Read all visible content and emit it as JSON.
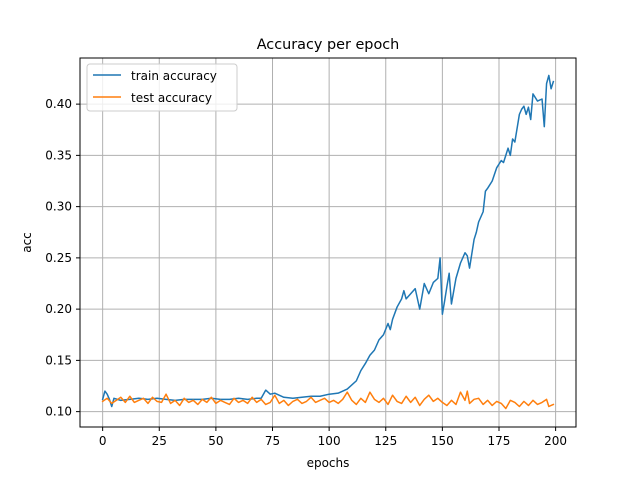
{
  "chart_data": {
    "type": "line",
    "title": "Accuracy per epoch",
    "xlabel": "epochs",
    "ylabel": "acc",
    "xlim": [
      -10,
      209
    ],
    "ylim": [
      0.085,
      0.445
    ],
    "xticks": [
      0,
      25,
      50,
      75,
      100,
      125,
      150,
      175,
      200
    ],
    "xtick_labels": [
      "0",
      "25",
      "50",
      "75",
      "100",
      "125",
      "150",
      "175",
      "200"
    ],
    "yticks": [
      0.1,
      0.15,
      0.2,
      0.25,
      0.3,
      0.35,
      0.4
    ],
    "ytick_labels": [
      "0.10",
      "0.15",
      "0.20",
      "0.25",
      "0.30",
      "0.35",
      "0.40"
    ],
    "grid": true,
    "legend_position": "top-left",
    "series": [
      {
        "name": "train accuracy",
        "color": "#1f77b4",
        "keypoints": [
          [
            0,
            0.112
          ],
          [
            1,
            0.12
          ],
          [
            2,
            0.117
          ],
          [
            3,
            0.112
          ],
          [
            4,
            0.105
          ],
          [
            5,
            0.113
          ],
          [
            8,
            0.111
          ],
          [
            12,
            0.112
          ],
          [
            16,
            0.113
          ],
          [
            20,
            0.112
          ],
          [
            24,
            0.113
          ],
          [
            28,
            0.112
          ],
          [
            32,
            0.111
          ],
          [
            36,
            0.112
          ],
          [
            40,
            0.112
          ],
          [
            44,
            0.112
          ],
          [
            48,
            0.113
          ],
          [
            52,
            0.112
          ],
          [
            56,
            0.112
          ],
          [
            60,
            0.113
          ],
          [
            64,
            0.112
          ],
          [
            68,
            0.113
          ],
          [
            70,
            0.113
          ],
          [
            72,
            0.121
          ],
          [
            74,
            0.117
          ],
          [
            76,
            0.118
          ],
          [
            80,
            0.114
          ],
          [
            84,
            0.113
          ],
          [
            88,
            0.114
          ],
          [
            92,
            0.115
          ],
          [
            96,
            0.115
          ],
          [
            100,
            0.117
          ],
          [
            104,
            0.118
          ],
          [
            108,
            0.122
          ],
          [
            112,
            0.13
          ],
          [
            114,
            0.14
          ],
          [
            116,
            0.147
          ],
          [
            118,
            0.155
          ],
          [
            120,
            0.16
          ],
          [
            122,
            0.17
          ],
          [
            124,
            0.175
          ],
          [
            126,
            0.186
          ],
          [
            127,
            0.18
          ],
          [
            128,
            0.19
          ],
          [
            130,
            0.202
          ],
          [
            132,
            0.21
          ],
          [
            133,
            0.218
          ],
          [
            134,
            0.21
          ],
          [
            136,
            0.215
          ],
          [
            138,
            0.22
          ],
          [
            140,
            0.2
          ],
          [
            142,
            0.225
          ],
          [
            144,
            0.215
          ],
          [
            146,
            0.226
          ],
          [
            148,
            0.23
          ],
          [
            149,
            0.25
          ],
          [
            150,
            0.195
          ],
          [
            151,
            0.208
          ],
          [
            152,
            0.222
          ],
          [
            153,
            0.235
          ],
          [
            154,
            0.205
          ],
          [
            156,
            0.23
          ],
          [
            158,
            0.245
          ],
          [
            159,
            0.25
          ],
          [
            160,
            0.255
          ],
          [
            161,
            0.252
          ],
          [
            162,
            0.24
          ],
          [
            164,
            0.268
          ],
          [
            165,
            0.275
          ],
          [
            166,
            0.285
          ],
          [
            168,
            0.295
          ],
          [
            169,
            0.315
          ],
          [
            170,
            0.318
          ],
          [
            172,
            0.325
          ],
          [
            174,
            0.338
          ],
          [
            176,
            0.345
          ],
          [
            177,
            0.343
          ],
          [
            178,
            0.35
          ],
          [
            179,
            0.357
          ],
          [
            180,
            0.35
          ],
          [
            181,
            0.366
          ],
          [
            182,
            0.363
          ],
          [
            184,
            0.39
          ],
          [
            185,
            0.395
          ],
          [
            186,
            0.398
          ],
          [
            187,
            0.39
          ],
          [
            188,
            0.397
          ],
          [
            189,
            0.385
          ],
          [
            190,
            0.41
          ],
          [
            192,
            0.403
          ],
          [
            194,
            0.405
          ],
          [
            195,
            0.378
          ],
          [
            196,
            0.42
          ],
          [
            197,
            0.428
          ],
          [
            198,
            0.415
          ],
          [
            199,
            0.422
          ]
        ]
      },
      {
        "name": "test accuracy",
        "color": "#ff7f0e",
        "keypoints": [
          [
            0,
            0.11
          ],
          [
            2,
            0.113
          ],
          [
            4,
            0.108
          ],
          [
            6,
            0.111
          ],
          [
            8,
            0.114
          ],
          [
            10,
            0.109
          ],
          [
            12,
            0.115
          ],
          [
            14,
            0.109
          ],
          [
            16,
            0.111
          ],
          [
            18,
            0.113
          ],
          [
            20,
            0.108
          ],
          [
            22,
            0.114
          ],
          [
            24,
            0.11
          ],
          [
            26,
            0.109
          ],
          [
            28,
            0.117
          ],
          [
            30,
            0.108
          ],
          [
            32,
            0.111
          ],
          [
            34,
            0.106
          ],
          [
            36,
            0.113
          ],
          [
            38,
            0.109
          ],
          [
            40,
            0.111
          ],
          [
            42,
            0.107
          ],
          [
            44,
            0.112
          ],
          [
            46,
            0.109
          ],
          [
            48,
            0.114
          ],
          [
            50,
            0.108
          ],
          [
            52,
            0.111
          ],
          [
            54,
            0.109
          ],
          [
            56,
            0.107
          ],
          [
            58,
            0.113
          ],
          [
            60,
            0.109
          ],
          [
            62,
            0.111
          ],
          [
            64,
            0.108
          ],
          [
            66,
            0.114
          ],
          [
            68,
            0.109
          ],
          [
            70,
            0.112
          ],
          [
            72,
            0.107
          ],
          [
            74,
            0.109
          ],
          [
            76,
            0.116
          ],
          [
            78,
            0.108
          ],
          [
            80,
            0.111
          ],
          [
            82,
            0.106
          ],
          [
            84,
            0.11
          ],
          [
            86,
            0.112
          ],
          [
            88,
            0.108
          ],
          [
            90,
            0.11
          ],
          [
            92,
            0.114
          ],
          [
            94,
            0.109
          ],
          [
            96,
            0.111
          ],
          [
            98,
            0.113
          ],
          [
            100,
            0.109
          ],
          [
            102,
            0.111
          ],
          [
            104,
            0.108
          ],
          [
            106,
            0.112
          ],
          [
            108,
            0.119
          ],
          [
            110,
            0.111
          ],
          [
            112,
            0.107
          ],
          [
            114,
            0.113
          ],
          [
            116,
            0.109
          ],
          [
            118,
            0.119
          ],
          [
            120,
            0.112
          ],
          [
            122,
            0.109
          ],
          [
            124,
            0.113
          ],
          [
            126,
            0.107
          ],
          [
            128,
            0.116
          ],
          [
            130,
            0.11
          ],
          [
            132,
            0.108
          ],
          [
            134,
            0.115
          ],
          [
            136,
            0.109
          ],
          [
            138,
            0.114
          ],
          [
            140,
            0.106
          ],
          [
            142,
            0.112
          ],
          [
            144,
            0.116
          ],
          [
            146,
            0.11
          ],
          [
            148,
            0.113
          ],
          [
            150,
            0.109
          ],
          [
            152,
            0.106
          ],
          [
            154,
            0.111
          ],
          [
            156,
            0.107
          ],
          [
            158,
            0.119
          ],
          [
            160,
            0.111
          ],
          [
            161,
            0.12
          ],
          [
            162,
            0.108
          ],
          [
            164,
            0.112
          ],
          [
            166,
            0.113
          ],
          [
            168,
            0.107
          ],
          [
            170,
            0.111
          ],
          [
            172,
            0.106
          ],
          [
            174,
            0.11
          ],
          [
            176,
            0.108
          ],
          [
            178,
            0.103
          ],
          [
            180,
            0.111
          ],
          [
            182,
            0.109
          ],
          [
            184,
            0.105
          ],
          [
            186,
            0.11
          ],
          [
            188,
            0.106
          ],
          [
            190,
            0.111
          ],
          [
            192,
            0.107
          ],
          [
            194,
            0.109
          ],
          [
            196,
            0.112
          ],
          [
            197,
            0.105
          ],
          [
            198,
            0.106
          ],
          [
            199,
            0.107
          ]
        ]
      }
    ]
  }
}
